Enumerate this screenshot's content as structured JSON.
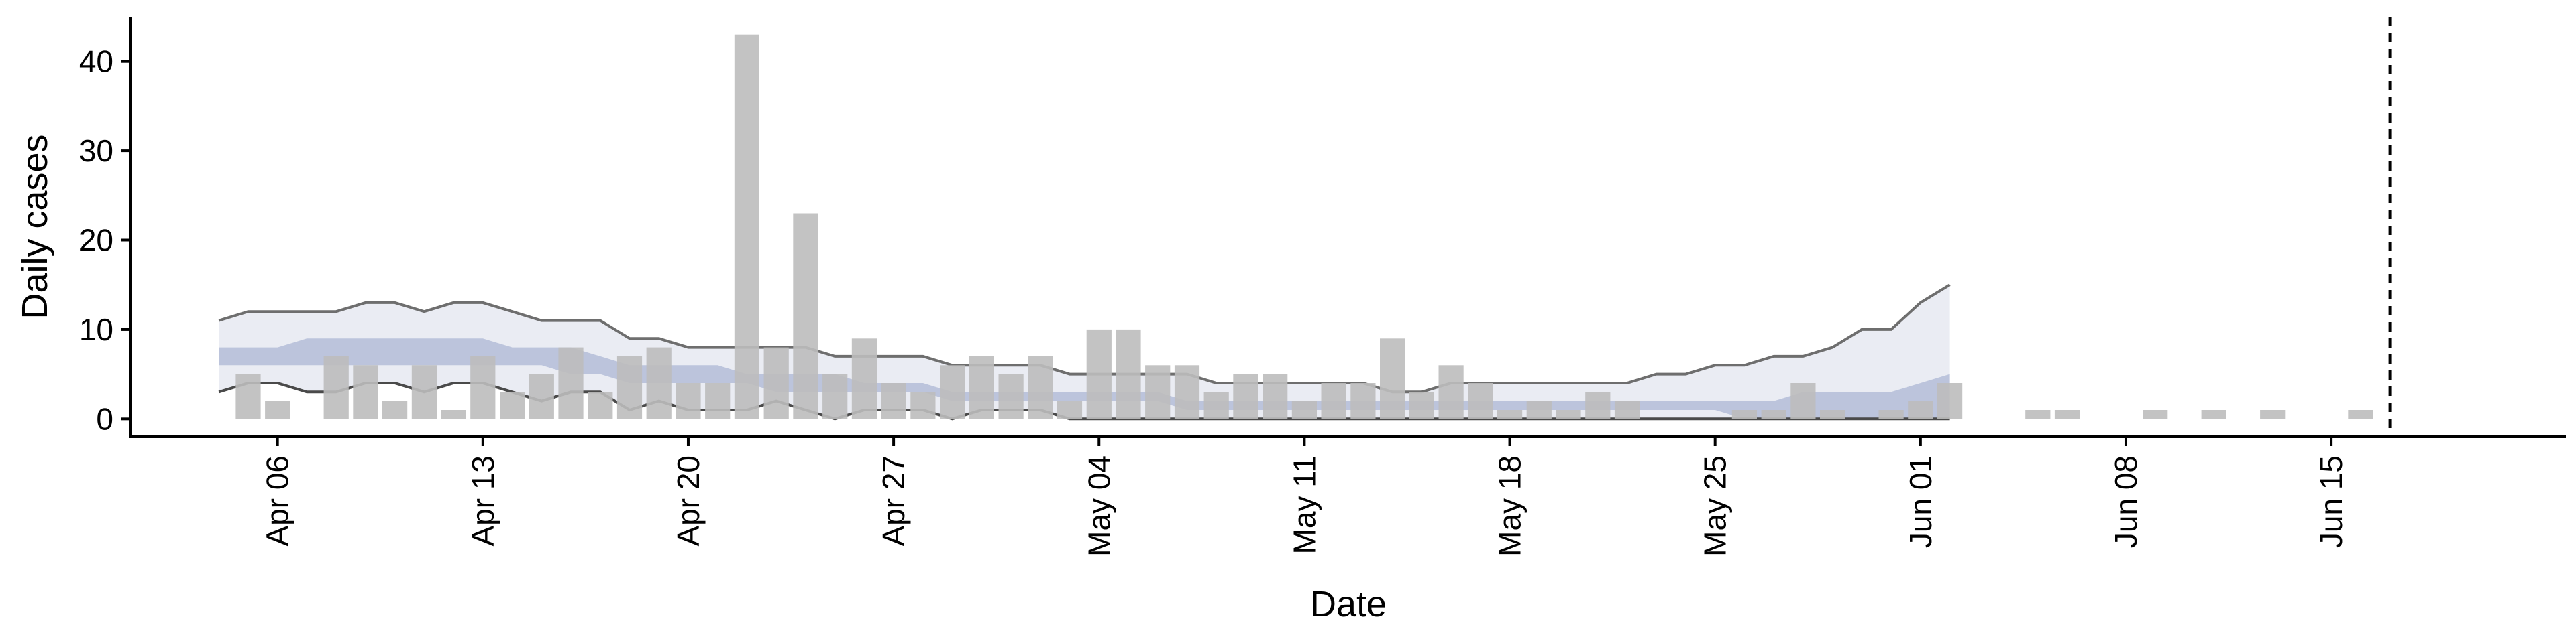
{
  "chart_data": {
    "type": "bar",
    "title": "",
    "xlabel": "Date",
    "ylabel": "Daily cases",
    "ylim": [
      -2,
      45
    ],
    "x_range": [
      "2020-04-01",
      "2020-06-23"
    ],
    "yticks": [
      0,
      10,
      20,
      30,
      40
    ],
    "xticks": [
      {
        "date": "2020-04-06",
        "label": "Apr 06"
      },
      {
        "date": "2020-04-13",
        "label": "Apr 13"
      },
      {
        "date": "2020-04-20",
        "label": "Apr 20"
      },
      {
        "date": "2020-04-27",
        "label": "Apr 27"
      },
      {
        "date": "2020-05-04",
        "label": "May 04"
      },
      {
        "date": "2020-05-11",
        "label": "May 11"
      },
      {
        "date": "2020-05-18",
        "label": "May 18"
      },
      {
        "date": "2020-05-25",
        "label": "May 25"
      },
      {
        "date": "2020-06-01",
        "label": "Jun 01"
      },
      {
        "date": "2020-06-08",
        "label": "Jun 08"
      },
      {
        "date": "2020-06-15",
        "label": "Jun 15"
      }
    ],
    "vline_date": "2020-06-17",
    "grid": false,
    "bars": {
      "start_date": "2020-04-05",
      "values": [
        5,
        2,
        0,
        7,
        6,
        2,
        6,
        1,
        7,
        3,
        5,
        8,
        3,
        7,
        8,
        4,
        4,
        43,
        8,
        23,
        5,
        9,
        4,
        3,
        6,
        7,
        5,
        7,
        2,
        10,
        10,
        6,
        6,
        3,
        5,
        5,
        2,
        4,
        4,
        9,
        3,
        6,
        4,
        1,
        2,
        1,
        3,
        2,
        0,
        0,
        0,
        1,
        1,
        4,
        1,
        0,
        1,
        2,
        4,
        0,
        0,
        1,
        1,
        0,
        0,
        1,
        0,
        1,
        0,
        1,
        0,
        0,
        1
      ],
      "color": "#bdbdbd"
    },
    "bands": {
      "start_date": "2020-04-04",
      "outer_upper": [
        11,
        12,
        12,
        12,
        12,
        13,
        13,
        12,
        13,
        13,
        12,
        11,
        11,
        11,
        9,
        9,
        8,
        8,
        8,
        8,
        8,
        7,
        7,
        7,
        7,
        6,
        6,
        6,
        6,
        5,
        5,
        5,
        5,
        5,
        4,
        4,
        4,
        4,
        4,
        4,
        3,
        3,
        4,
        4,
        4,
        4,
        4,
        4,
        4,
        5,
        5,
        6,
        6,
        7,
        7,
        8,
        10,
        10,
        13,
        15
      ],
      "outer_lower": [
        3,
        4,
        4,
        3,
        3,
        4,
        4,
        3,
        4,
        4,
        3,
        2,
        3,
        3,
        1,
        2,
        1,
        1,
        1,
        2,
        1,
        0,
        1,
        1,
        1,
        0,
        1,
        1,
        1,
        0,
        0,
        0,
        0,
        0,
        0,
        0,
        0,
        0,
        0,
        0,
        0,
        0,
        0,
        0,
        0,
        0,
        0,
        0,
        0,
        0,
        0,
        0,
        0,
        0,
        0,
        0,
        0,
        0,
        0,
        0
      ],
      "mid_upper": [
        8,
        8,
        8,
        9,
        9,
        9,
        9,
        9,
        9,
        9,
        8,
        8,
        8,
        7,
        6,
        6,
        6,
        6,
        5,
        5,
        5,
        5,
        4,
        4,
        4,
        3,
        3,
        3,
        3,
        3,
        3,
        3,
        3,
        2,
        2,
        2,
        2,
        2,
        2,
        2,
        2,
        2,
        2,
        2,
        2,
        2,
        2,
        2,
        2,
        2,
        2,
        2,
        2,
        2,
        3,
        3,
        3,
        3,
        4,
        5
      ],
      "mid_lower": [
        6,
        6,
        6,
        6,
        6,
        6,
        6,
        6,
        6,
        6,
        6,
        6,
        5,
        5,
        4,
        4,
        4,
        4,
        4,
        3,
        3,
        3,
        3,
        3,
        3,
        2,
        2,
        2,
        2,
        2,
        2,
        2,
        2,
        1,
        1,
        1,
        1,
        1,
        1,
        1,
        1,
        1,
        1,
        1,
        1,
        1,
        1,
        1,
        1,
        1,
        1,
        1,
        0,
        0,
        0,
        0,
        0,
        0,
        0,
        0
      ],
      "outer_color": "#d9dcea",
      "mid_color": "#a8b3d2"
    }
  }
}
